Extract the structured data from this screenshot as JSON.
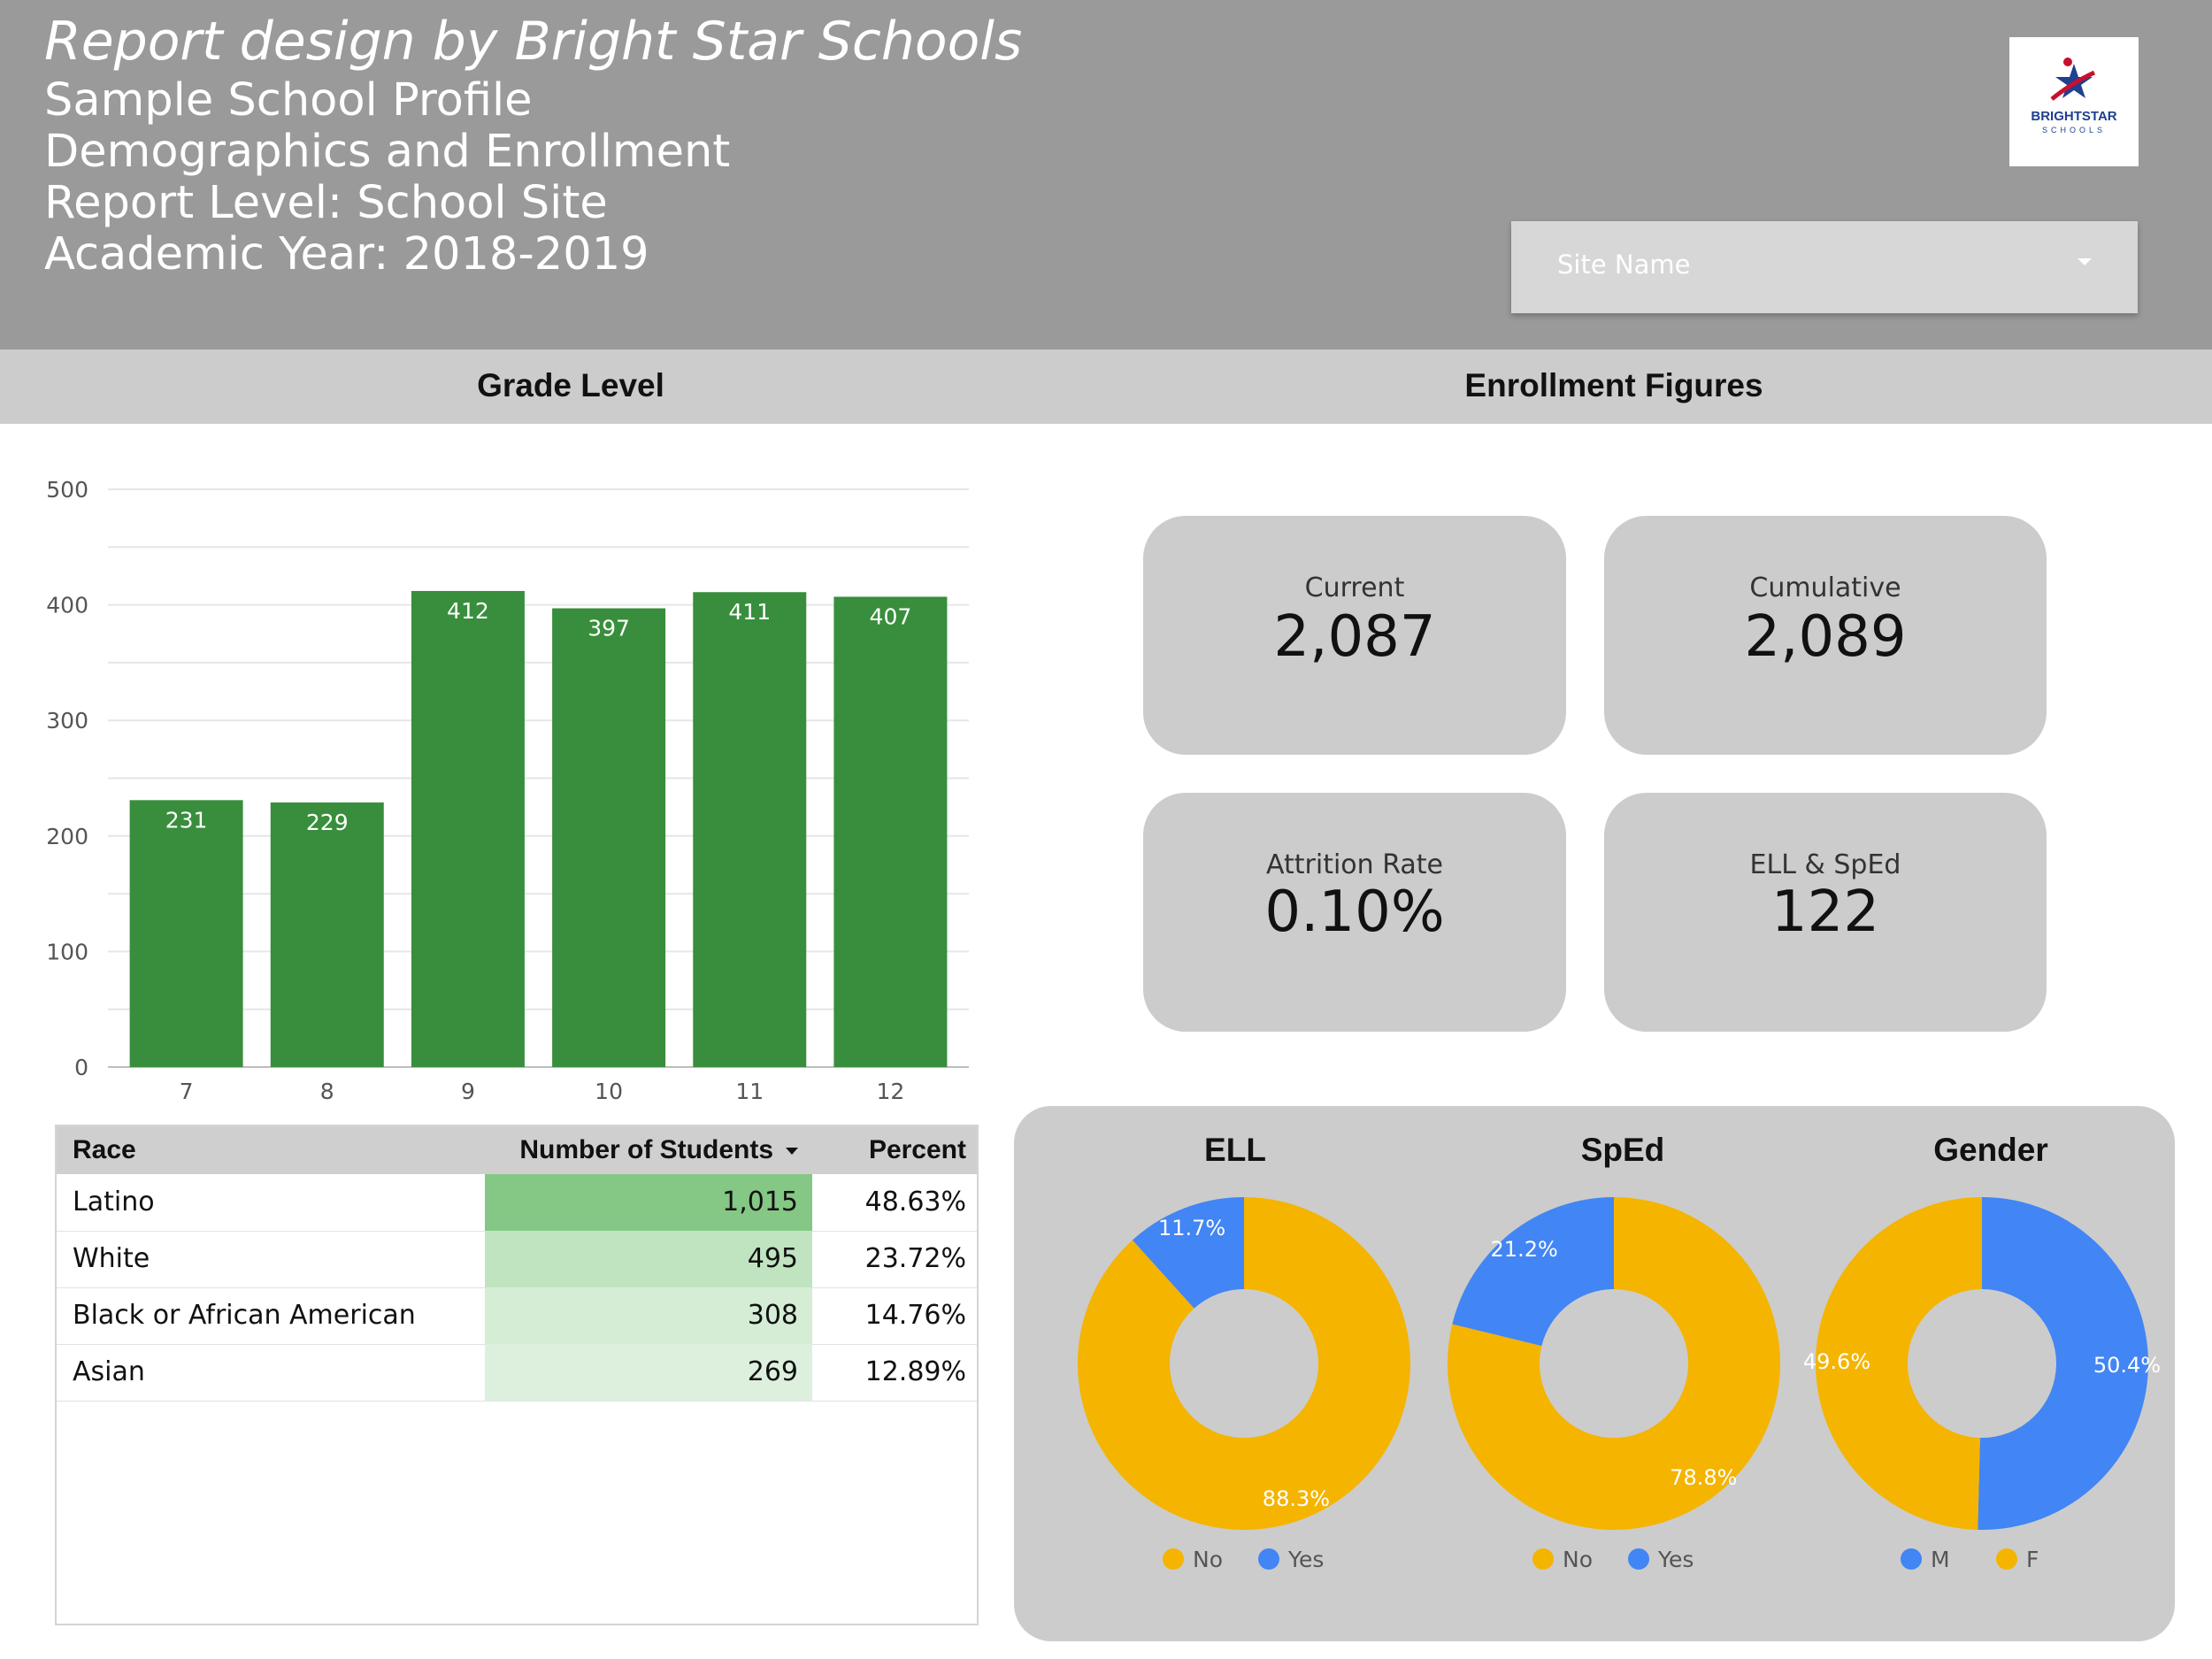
{
  "header": {
    "title": "Report design by Bright Star Schools",
    "line1": "Sample School Profile",
    "line2": "Demographics and Enrollment",
    "line3": "Report Level: School Site",
    "line4": "Academic Year: 2018-2019",
    "logo": {
      "text_top": "BRIGHTSTAR",
      "text_bottom": "SCHOOLS",
      "star_color": "#1f3f8f",
      "accent_color": "#c8102e"
    },
    "site_select": {
      "placeholder": "Site Name",
      "icon": "chevron-down-icon"
    }
  },
  "sections": {
    "grade_level": "Grade Level",
    "enrollment_figures": "Enrollment Figures"
  },
  "chart_data": [
    {
      "type": "bar",
      "categories": [
        "7",
        "8",
        "9",
        "10",
        "11",
        "12"
      ],
      "values": [
        231,
        229,
        412,
        397,
        411,
        407
      ],
      "data_labels": [
        "231",
        "229",
        "412",
        "397",
        "411",
        "407"
      ],
      "ylim": [
        0,
        500
      ],
      "yticks": [
        0,
        100,
        200,
        300,
        400,
        500
      ],
      "color": "#388e3c",
      "grid": true
    },
    {
      "type": "pie",
      "title": "ELL",
      "hole": true,
      "slices": [
        {
          "label": "No",
          "value": 88.3,
          "text": "88.3%",
          "color": "#f4b400"
        },
        {
          "label": "Yes",
          "value": 11.7,
          "text": "11.7%",
          "color": "#4285f4"
        }
      ],
      "legend": [
        "No",
        "Yes"
      ],
      "legend_position": "bottom"
    },
    {
      "type": "pie",
      "title": "SpEd",
      "hole": true,
      "slices": [
        {
          "label": "No",
          "value": 78.8,
          "text": "78.8%",
          "color": "#f4b400"
        },
        {
          "label": "Yes",
          "value": 21.2,
          "text": "21.2%",
          "color": "#4285f4"
        }
      ],
      "legend": [
        "No",
        "Yes"
      ],
      "legend_position": "bottom"
    },
    {
      "type": "pie",
      "title": "Gender",
      "hole": true,
      "slices": [
        {
          "label": "M",
          "value": 50.4,
          "text": "50.4%",
          "color": "#4285f4"
        },
        {
          "label": "F",
          "value": 49.6,
          "text": "49.6%",
          "color": "#f4b400"
        }
      ],
      "legend": [
        "M",
        "F"
      ],
      "legend_position": "bottom"
    }
  ],
  "table": {
    "headers": {
      "race": "Race",
      "number": "Number of Students",
      "percent": "Percent"
    },
    "sort_column": "number",
    "rows": [
      {
        "race": "Latino",
        "number": "1,015",
        "percent": "48.63%",
        "value": 1015
      },
      {
        "race": "White",
        "number": "495",
        "percent": "23.72%",
        "value": 495
      },
      {
        "race": "Black or African American",
        "number": "308",
        "percent": "14.76%",
        "value": 308
      },
      {
        "race": "Asian",
        "number": "269",
        "percent": "12.89%",
        "value": 269
      }
    ],
    "heat_colors": [
      "#85c785",
      "#c0e4c0",
      "#d5edd5",
      "#ddf0dd"
    ]
  },
  "kpis": {
    "current": {
      "label": "Current",
      "value": "2,087"
    },
    "cumulative": {
      "label": "Cumulative",
      "value": "2,089"
    },
    "attrition": {
      "label": "Attrition Rate",
      "value": "0.10%"
    },
    "ell_sped": {
      "label": "ELL & SpEd",
      "value": "122"
    }
  }
}
